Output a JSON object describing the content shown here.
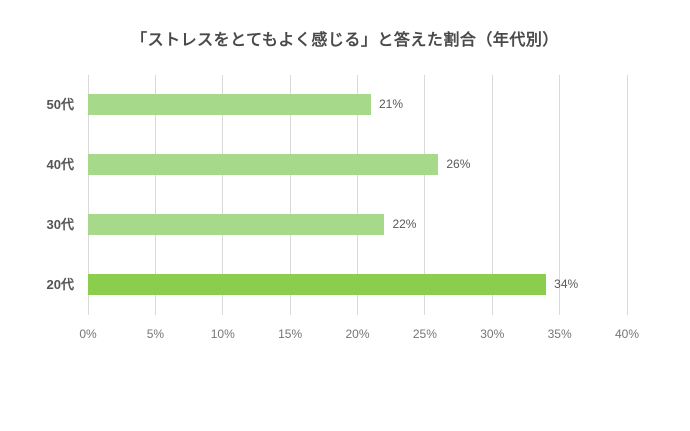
{
  "title": "「ストレスをとてもよく感じる」と答えた割合（年代別）",
  "colors": {
    "bar_default": "#a7d98b",
    "bar_highlight": "#8bce4e",
    "gridline": "#d9d9d9",
    "title_text": "#4a4a4a",
    "category_text": "#555555",
    "value_text": "#595959",
    "tick_text": "#757575",
    "background": "#ffffff"
  },
  "chart_data": {
    "type": "bar",
    "orientation": "horizontal",
    "title": "「ストレスをとてもよく感じる」と答えた割合（年代別）",
    "categories": [
      "50代",
      "40代",
      "30代",
      "20代"
    ],
    "values": [
      21,
      26,
      22,
      34
    ],
    "value_labels": [
      "21%",
      "26%",
      "22%",
      "34%"
    ],
    "highlight_category": "20代",
    "xlabel": "",
    "ylabel": "",
    "xlim": [
      0,
      40
    ],
    "x_ticks": [
      "0%",
      "5%",
      "10%",
      "15%",
      "20%",
      "25%",
      "30%",
      "35%",
      "40%"
    ],
    "x_tick_values": [
      0,
      5,
      10,
      15,
      20,
      25,
      30,
      35,
      40
    ],
    "grid": "vertical-only",
    "legend": "none"
  }
}
